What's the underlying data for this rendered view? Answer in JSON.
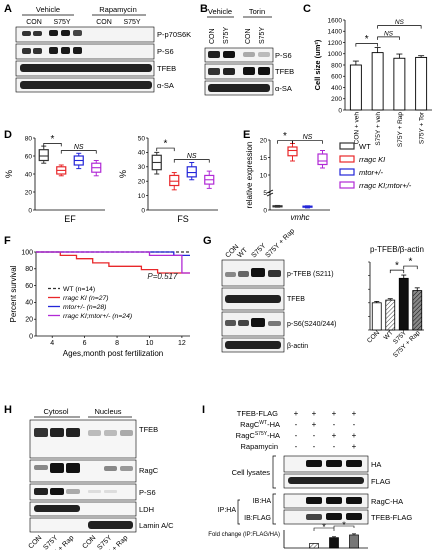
{
  "panels": {
    "A": {
      "letter": "A",
      "groups": [
        "Vehicle",
        "Rapamycin"
      ],
      "lanes": [
        "CON",
        "S75Y",
        "CON",
        "S75Y"
      ],
      "blots": [
        "P-p70S6K",
        "P-S6",
        "TFEB",
        "α-SA"
      ]
    },
    "B": {
      "letter": "B",
      "groups": [
        "Vehicle",
        "Torin"
      ],
      "lanes": [
        "CON",
        "S75Y",
        "CON",
        "S75Y"
      ],
      "blots": [
        "P-S6",
        "TFEB",
        "α-SA"
      ]
    },
    "C": {
      "letter": "C"
    },
    "D": {
      "letter": "D"
    },
    "E": {
      "letter": "E",
      "legend": [
        "WT",
        "rragc KI",
        "mtor+/-",
        "rragc KI;mtor+/-"
      ]
    },
    "F": {
      "letter": "F"
    },
    "G": {
      "letter": "G",
      "lanes": [
        "CON",
        "WT",
        "S75Y",
        "S75Y + Rap"
      ],
      "blots": [
        "p-TFEB (S211)",
        "TFEB",
        "p-S6(S240/244)",
        "β-actin"
      ]
    },
    "H": {
      "letter": "H",
      "groups": [
        "Cytosol",
        "Nucleus"
      ],
      "lanes": [
        "CON",
        "S75Y",
        "S75Y + Rap",
        "CON",
        "S75Y",
        "S75Y + Rap"
      ],
      "blots": [
        "TFEB",
        "RagC",
        "P-S6",
        "LDH",
        "Lamin A/C"
      ]
    },
    "I": {
      "letter": "I",
      "conditions": [
        {
          "label": "TFEB-FLAG",
          "values": [
            "+",
            "+",
            "+",
            "+"
          ]
        },
        {
          "label": "RagC WT-HA",
          "label_main": "RagC",
          "label_sup": "WT",
          "label_end": "-HA",
          "values": [
            "-",
            "+",
            "-",
            "-"
          ]
        },
        {
          "label": "RagC S75Y-HA",
          "label_main": "RagC",
          "label_sup": "S75Y",
          "label_end": "-HA",
          "values": [
            "-",
            "-",
            "+",
            "+"
          ]
        },
        {
          "label": "Rapamycin",
          "values": [
            "-",
            "-",
            "-",
            "+"
          ]
        }
      ],
      "cell_lysates": "Cell lysates",
      "ip_label": "IP:HA",
      "ib_labels": [
        "IB:HA",
        "IB:FLAG"
      ],
      "blots": [
        "HA",
        "FLAG",
        "RagC-HA",
        "TFEB-FLAG"
      ]
    }
  },
  "chart_data": [
    {
      "id": "C",
      "type": "bar",
      "categories": [
        "CON + veh",
        "S75Y + veh",
        "S75Y + Rap",
        "S75Y + Tor"
      ],
      "values": [
        800,
        1020,
        920,
        935
      ],
      "errors": [
        70,
        90,
        75,
        30
      ],
      "ylabel": "Cell size (um²)",
      "ylim": [
        0,
        1600
      ],
      "yticks": [
        "0",
        "200",
        "400",
        "600",
        "800",
        "1000",
        "1200",
        "1400",
        "1600"
      ],
      "annotations": [
        "*",
        "NS",
        "NS"
      ]
    },
    {
      "id": "D-EF",
      "type": "box",
      "title": "EF",
      "ylabel": "%",
      "ylim": [
        0,
        80
      ],
      "yticks": [
        "0",
        "20",
        "40",
        "60",
        "80"
      ],
      "boxes": [
        {
          "color": "#333333",
          "min": 52,
          "q1": 55,
          "median": 60,
          "q3": 67,
          "max": 71
        },
        {
          "color": "#e8272a",
          "min": 38,
          "q1": 40,
          "median": 44,
          "q3": 48,
          "max": 50
        },
        {
          "color": "#2326d8",
          "min": 46,
          "q1": 50,
          "median": 55,
          "q3": 60,
          "max": 63
        },
        {
          "color": "#b12ad6",
          "min": 38,
          "q1": 42,
          "median": 47,
          "q3": 52,
          "max": 55
        }
      ],
      "annotations": [
        "*",
        "NS"
      ]
    },
    {
      "id": "D-FS",
      "type": "box",
      "title": "FS",
      "ylabel": "%",
      "ylim": [
        0,
        50
      ],
      "yticks": [
        "0",
        "10",
        "20",
        "30",
        "40",
        "50"
      ],
      "boxes": [
        {
          "color": "#333333",
          "min": 25,
          "q1": 28,
          "median": 33,
          "q3": 38,
          "max": 40
        },
        {
          "color": "#e8272a",
          "min": 14,
          "q1": 17,
          "median": 20,
          "q3": 24,
          "max": 26
        },
        {
          "color": "#2326d8",
          "min": 21,
          "q1": 23,
          "median": 26,
          "q3": 30,
          "max": 33
        },
        {
          "color": "#b12ad6",
          "min": 15,
          "q1": 18,
          "median": 21,
          "q3": 24,
          "max": 27
        }
      ],
      "annotations": [
        "*",
        "NS"
      ]
    },
    {
      "id": "E",
      "type": "box",
      "ylabel": "relative expression",
      "xlabel": "vmhc",
      "ylim": [
        0,
        20
      ],
      "yticks": [
        "0",
        "5",
        "10",
        "15",
        "20"
      ],
      "boxes": [
        {
          "color": "#333333",
          "min": 0.8,
          "q1": 0.9,
          "median": 1.0,
          "q3": 1.2,
          "max": 1.3
        },
        {
          "color": "#e8272a",
          "min": 14,
          "q1": 15.5,
          "median": 17,
          "q3": 18,
          "max": 19
        },
        {
          "color": "#2326d8",
          "min": 0.6,
          "q1": 0.8,
          "median": 1.0,
          "q3": 1.1,
          "max": 1.2
        },
        {
          "color": "#b12ad6",
          "min": 12,
          "q1": 13,
          "median": 14,
          "q3": 16,
          "max": 17
        }
      ],
      "annotations": [
        "*",
        "NS"
      ]
    },
    {
      "id": "F",
      "type": "line",
      "ylabel": "Percent survival",
      "xlabel": "Ages,month post fertilization",
      "xlim": [
        3,
        12.5
      ],
      "ylim": [
        0,
        100
      ],
      "xticks": [
        "4",
        "6",
        "8",
        "10",
        "12"
      ],
      "yticks": [
        "0",
        "20",
        "40",
        "60",
        "80",
        "100"
      ],
      "pvalue": "P=0.517",
      "series": [
        {
          "name": "WT (n=14)",
          "color": "#333333",
          "dash": true,
          "points": [
            [
              3,
              100
            ],
            [
              12.5,
              100
            ]
          ]
        },
        {
          "name": "rragc KI (n=27)",
          "color": "#e8272a",
          "points": [
            [
              3,
              100
            ],
            [
              4.5,
              100
            ],
            [
              4.5,
              96
            ],
            [
              5.5,
              96
            ],
            [
              5.5,
              92
            ],
            [
              6.5,
              92
            ],
            [
              6.5,
              87
            ],
            [
              7.5,
              87
            ],
            [
              7.5,
              83
            ],
            [
              9.5,
              83
            ],
            [
              9.5,
              79
            ],
            [
              10.5,
              79
            ],
            [
              10.5,
              75
            ],
            [
              12.5,
              75
            ]
          ]
        },
        {
          "name": "mtor+/- (n=28)",
          "color": "#2326d8",
          "points": [
            [
              3,
              100
            ],
            [
              11.5,
              100
            ],
            [
              11.5,
              96
            ],
            [
              12.5,
              96
            ]
          ]
        },
        {
          "name": "rragc KI;mtor+/- (n=24)",
          "color": "#b12ad6",
          "points": [
            [
              3,
              100
            ],
            [
              10,
              100
            ],
            [
              10,
              96
            ],
            [
              12,
              96
            ],
            [
              12,
              75
            ],
            [
              12.5,
              75
            ]
          ]
        }
      ]
    },
    {
      "id": "G",
      "type": "bar",
      "title": "p-TFEB/β-actin",
      "categories": [
        "CON",
        "WT",
        "S75Y",
        "S75Y + Rap"
      ],
      "values": [
        1.0,
        1.1,
        1.9,
        1.45
      ],
      "errors": [
        0.05,
        0.05,
        0.12,
        0.1
      ],
      "ylim": [
        0,
        2.5
      ],
      "annotations": [
        "*",
        "*"
      ]
    },
    {
      "id": "I",
      "type": "bar",
      "ylabel": "Fold change (IP:FLAG/HA)",
      "values": [
        0,
        1.0,
        2.3,
        2.9
      ],
      "errors": [
        0,
        0,
        0.2,
        0.25
      ],
      "ylim": [
        0,
        4
      ],
      "annotations": [
        "*",
        "*"
      ]
    }
  ]
}
